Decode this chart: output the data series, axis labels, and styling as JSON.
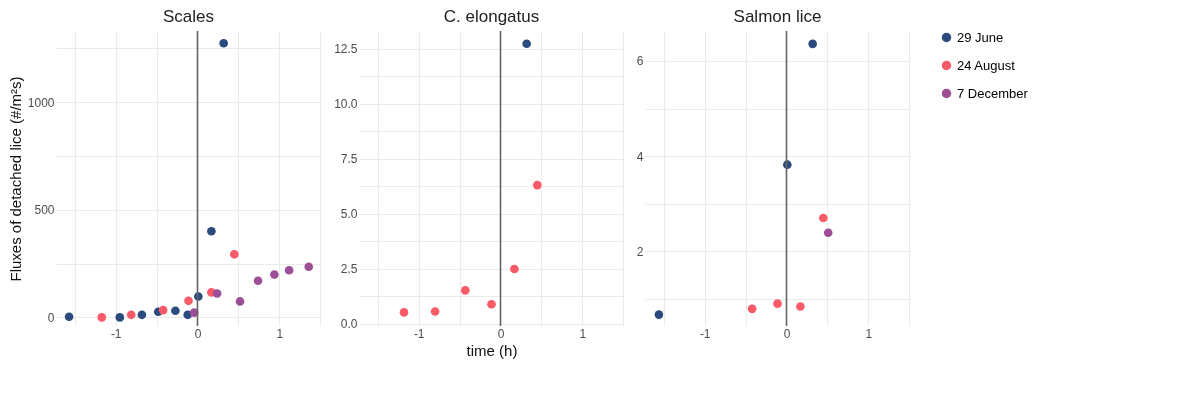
{
  "chart_data": [
    {
      "type": "scatter",
      "title": "Scales",
      "ylabel": "Fluxes of detached lice (#/m²s)",
      "marker": "circle",
      "grid": true,
      "legend": "right",
      "xlim": [
        -1.73,
        1.51
      ],
      "xticks": [
        {
          "value": -1.5,
          "label": null
        },
        -1,
        {
          "value": -0.5,
          "label": null
        },
        0,
        {
          "value": 0.5,
          "label": null
        },
        1,
        {
          "value": 1.5,
          "label": null
        }
      ],
      "ylim": [
        -40,
        1330
      ],
      "yticks": [
        0,
        {
          "value": 250,
          "label": null
        },
        500,
        {
          "value": 750,
          "label": null
        },
        1000,
        {
          "value": 1250,
          "label": null
        }
      ],
      "ref_lines": [
        {
          "axis": "x",
          "value": 0,
          "color": "#666666"
        }
      ],
      "series": [
        {
          "name": "29 June",
          "color": "#2b4a7d",
          "x": [
            -1.57,
            -0.95,
            -0.68,
            -0.48,
            -0.27,
            -0.12,
            0.01,
            0.17,
            0.32
          ],
          "values": [
            3,
            0,
            12,
            26,
            31,
            12,
            97,
            400,
            1273
          ]
        },
        {
          "name": "24 August",
          "color": "#f95a68",
          "x": [
            -1.17,
            -0.81,
            -0.42,
            -0.11,
            0.17,
            0.45
          ],
          "values": [
            0,
            12,
            34,
            77,
            116,
            293
          ]
        },
        {
          "name": "7 December",
          "color": "#9c4f96",
          "x": [
            -0.04,
            0.24,
            0.52,
            0.74,
            0.94,
            1.12,
            1.36
          ],
          "values": [
            22,
            111,
            74,
            170,
            199,
            219,
            235
          ]
        }
      ]
    },
    {
      "type": "scatter",
      "title": "C. elongatus",
      "xlabel": "time (h)",
      "marker": "circle",
      "grid": true,
      "xlim": [
        -1.73,
        1.51
      ],
      "xticks": [
        {
          "value": -1.5,
          "label": null
        },
        -1,
        {
          "value": -0.5,
          "label": null
        },
        0,
        {
          "value": 0.5,
          "label": null
        },
        1,
        {
          "value": 1.5,
          "label": null
        }
      ],
      "ylim": [
        -0.1,
        13.3
      ],
      "yticks": [
        {
          "value": 0,
          "label": "0.0"
        },
        {
          "value": 1.25,
          "label": null
        },
        2.5,
        {
          "value": 3.75,
          "label": null
        },
        {
          "value": 5,
          "label": "5.0"
        },
        {
          "value": 6.25,
          "label": null
        },
        7.5,
        {
          "value": 8.75,
          "label": null
        },
        {
          "value": 10,
          "label": "10.0"
        },
        {
          "value": 11.25,
          "label": null
        },
        12.5
      ],
      "ref_lines": [
        {
          "axis": "x",
          "value": 0,
          "color": "#666666"
        }
      ],
      "series": [
        {
          "name": "29 June",
          "color": "#2b4a7d",
          "x": [
            0.32
          ],
          "values": [
            12.72
          ]
        },
        {
          "name": "24 August",
          "color": "#f95a68",
          "x": [
            -1.18,
            -0.8,
            -0.43,
            -0.11,
            0.17,
            0.45
          ],
          "values": [
            0.52,
            0.56,
            1.52,
            0.89,
            2.49,
            6.3
          ]
        }
      ]
    },
    {
      "type": "scatter",
      "title": "Salmon lice",
      "marker": "circle",
      "grid": true,
      "xlim": [
        -1.73,
        1.51
      ],
      "xticks": [
        {
          "value": -1.5,
          "label": null
        },
        -1,
        {
          "value": -0.5,
          "label": null
        },
        0,
        {
          "value": 0.5,
          "label": null
        },
        1,
        {
          "value": 1.5,
          "label": null
        }
      ],
      "ylim": [
        0.43,
        6.63
      ],
      "yticks": [
        {
          "value": 1,
          "label": null
        },
        2,
        {
          "value": 3,
          "label": null
        },
        4,
        {
          "value": 5,
          "label": null
        },
        6
      ],
      "ref_lines": [
        {
          "axis": "x",
          "value": 0,
          "color": "#666666"
        }
      ],
      "series": [
        {
          "name": "29 June",
          "color": "#2b4a7d",
          "x": [
            -1.56,
            0.01,
            0.32
          ],
          "values": [
            0.67,
            3.82,
            6.36
          ]
        },
        {
          "name": "24 August",
          "color": "#f95a68",
          "x": [
            -0.42,
            -0.11,
            0.17,
            0.45
          ],
          "values": [
            0.79,
            0.9,
            0.84,
            2.7
          ]
        },
        {
          "name": "7 December",
          "color": "#9c4f96",
          "x": [
            0.51
          ],
          "values": [
            2.39
          ]
        }
      ]
    }
  ]
}
